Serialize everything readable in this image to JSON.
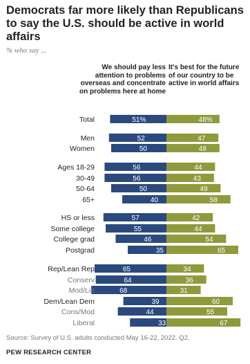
{
  "title": "Democrats far more likely than Republicans to say the U.S. should be active in world affairs",
  "subtitle": "% who say ...",
  "colors": {
    "left_bar": "#2a4a7e",
    "right_bar": "#8f9a3c",
    "label_primary": "#222222",
    "label_secondary": "#777777"
  },
  "chart_data": {
    "type": "bar",
    "orientation": "horizontal-diverging",
    "series": [
      {
        "name": "We should pay less attention to problems overseas and concentrate on problems here at home",
        "side": "left"
      },
      {
        "name": "It's best for the future of our country to be active in world affairs",
        "side": "right"
      }
    ],
    "rows": [
      {
        "label": "Total",
        "left": 51,
        "right": 48,
        "left_text": "51%",
        "right_text": "48%",
        "style": "primary"
      },
      {
        "label": "Men",
        "left": 52,
        "right": 47,
        "left_text": "52",
        "right_text": "47",
        "style": "primary"
      },
      {
        "label": "Women",
        "left": 50,
        "right": 48,
        "left_text": "50",
        "right_text": "48",
        "style": "primary"
      },
      {
        "label": "Ages 18-29",
        "left": 56,
        "right": 44,
        "left_text": "56",
        "right_text": "44",
        "style": "primary"
      },
      {
        "label": "30-49",
        "left": 56,
        "right": 43,
        "left_text": "56",
        "right_text": "43",
        "style": "primary"
      },
      {
        "label": "50-64",
        "left": 50,
        "right": 49,
        "left_text": "50",
        "right_text": "49",
        "style": "primary"
      },
      {
        "label": "65+",
        "left": 40,
        "right": 58,
        "left_text": "40",
        "right_text": "58",
        "style": "primary"
      },
      {
        "label": "HS or less",
        "left": 57,
        "right": 42,
        "left_text": "57",
        "right_text": "42",
        "style": "primary"
      },
      {
        "label": "Some college",
        "left": 55,
        "right": 44,
        "left_text": "55",
        "right_text": "44",
        "style": "primary"
      },
      {
        "label": "College grad",
        "left": 46,
        "right": 54,
        "left_text": "46",
        "right_text": "54",
        "style": "primary"
      },
      {
        "label": "Postgrad",
        "left": 35,
        "right": 65,
        "left_text": "35",
        "right_text": "65",
        "style": "primary"
      },
      {
        "label": "Rep/Lean Rep",
        "left": 65,
        "right": 34,
        "left_text": "65",
        "right_text": "34",
        "style": "primary"
      },
      {
        "label": "Conserv",
        "left": 64,
        "right": 36,
        "left_text": "64",
        "right_text": "36",
        "style": "secondary"
      },
      {
        "label": "Mod/Lib",
        "left": 68,
        "right": 31,
        "left_text": "68",
        "right_text": "31",
        "style": "secondary"
      },
      {
        "label": "Dem/Lean Dem",
        "left": 39,
        "right": 60,
        "left_text": "39",
        "right_text": "60",
        "style": "primary"
      },
      {
        "label": "Cons/Mod",
        "left": 44,
        "right": 55,
        "left_text": "44",
        "right_text": "55",
        "style": "secondary"
      },
      {
        "label": "Liberal",
        "left": 33,
        "right": 67,
        "left_text": "33",
        "right_text": "67",
        "style": "secondary"
      }
    ]
  },
  "source": "Source: Survey of U.S. adults conducted May 16-22, 2022. Q2.",
  "brand": "PEW RESEARCH CENTER"
}
